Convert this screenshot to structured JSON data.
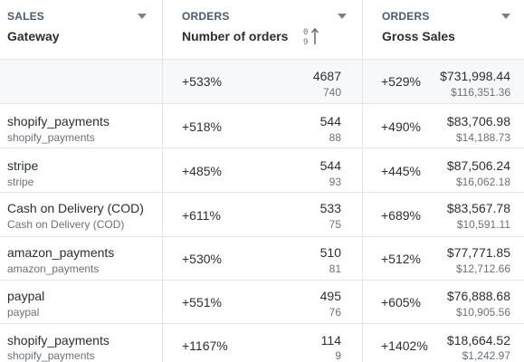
{
  "columns": [
    {
      "category": "SALES",
      "title": "Gateway"
    },
    {
      "category": "ORDERS",
      "title": "Number of orders"
    },
    {
      "category": "ORDERS",
      "title": "Gross Sales"
    }
  ],
  "totals": {
    "orders_pct": "+533%",
    "orders_current": "4687",
    "orders_previous": "740",
    "sales_pct": "+529%",
    "sales_current": "$731,998.44",
    "sales_previous": "$116,351.36"
  },
  "rows": [
    {
      "name": "shopify_payments",
      "sub": "shopify_payments",
      "orders_pct": "+518%",
      "orders_current": "544",
      "orders_previous": "88",
      "sales_pct": "+490%",
      "sales_current": "$83,706.98",
      "sales_previous": "$14,188.73"
    },
    {
      "name": "stripe",
      "sub": "stripe",
      "orders_pct": "+485%",
      "orders_current": "544",
      "orders_previous": "93",
      "sales_pct": "+445%",
      "sales_current": "$87,506.24",
      "sales_previous": "$16,062.18"
    },
    {
      "name": "Cash on Delivery (COD)",
      "sub": "Cash on Delivery (COD)",
      "orders_pct": "+611%",
      "orders_current": "533",
      "orders_previous": "75",
      "sales_pct": "+689%",
      "sales_current": "$83,567.78",
      "sales_previous": "$10,591.11"
    },
    {
      "name": "amazon_payments",
      "sub": "amazon_payments",
      "orders_pct": "+530%",
      "orders_current": "510",
      "orders_previous": "81",
      "sales_pct": "+512%",
      "sales_current": "$77,771.85",
      "sales_previous": "$12,712.66"
    },
    {
      "name": "paypal",
      "sub": "paypal",
      "orders_pct": "+551%",
      "orders_current": "495",
      "orders_previous": "76",
      "sales_pct": "+605%",
      "sales_current": "$76,888.68",
      "sales_previous": "$10,905.56"
    },
    {
      "name": "shopify_payments",
      "sub": "shopify_payments",
      "orders_pct": "+1167%",
      "orders_current": "114",
      "orders_previous": "9",
      "sales_pct": "+1402%",
      "sales_current": "$18,664.52",
      "sales_previous": "$1,242.97"
    }
  ],
  "icons": {
    "dropdown": "chevron-down-icon",
    "sort": "sort-numeric-ascending-icon"
  }
}
